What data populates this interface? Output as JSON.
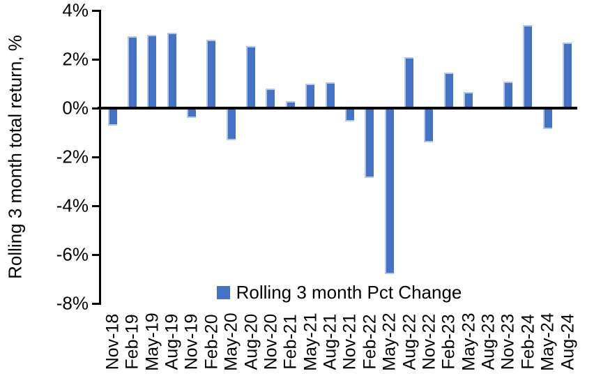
{
  "figure": {
    "background_color": "#ffffff",
    "bar_color": "#4472C4",
    "bar_edge_color": "#B4C7E7",
    "axis_color": "#000000",
    "text_color": "#000000"
  },
  "legend": {
    "label": "Rolling 3 month Pct Change"
  },
  "chart_data": {
    "type": "bar",
    "title": "",
    "xlabel": "",
    "ylabel": "Rolling 3 month total return, %",
    "ylim": [
      -8,
      4
    ],
    "grid": false,
    "legend_position": "bottom-center",
    "legend_entries": [
      "Rolling 3 month Pct Change"
    ],
    "yticks": [
      4,
      2,
      0,
      -2,
      -4,
      -6,
      -8
    ],
    "ytick_labels": [
      "4%",
      "2%",
      "0%",
      "-2%",
      "-4%",
      "-6%",
      "-8%"
    ],
    "categories": [
      "Nov-18",
      "Feb-19",
      "May-19",
      "Aug-19",
      "Nov-19",
      "Feb-20",
      "May-20",
      "Aug-20",
      "Nov-20",
      "Feb-21",
      "May-21",
      "Aug-21",
      "Nov-21",
      "Feb-22",
      "May-22",
      "Aug-22",
      "Nov-22",
      "Feb-23",
      "May-23",
      "Aug-23",
      "Nov-23",
      "Feb-24",
      "May-24",
      "Aug-24"
    ],
    "values": [
      -0.7,
      2.95,
      3.0,
      3.1,
      -0.4,
      2.8,
      -1.3,
      2.55,
      0.8,
      0.3,
      1.0,
      1.05,
      -0.55,
      -2.85,
      -6.8,
      2.1,
      -1.4,
      1.45,
      0.65,
      0.0,
      1.1,
      3.4,
      -0.85,
      2.7
    ]
  }
}
